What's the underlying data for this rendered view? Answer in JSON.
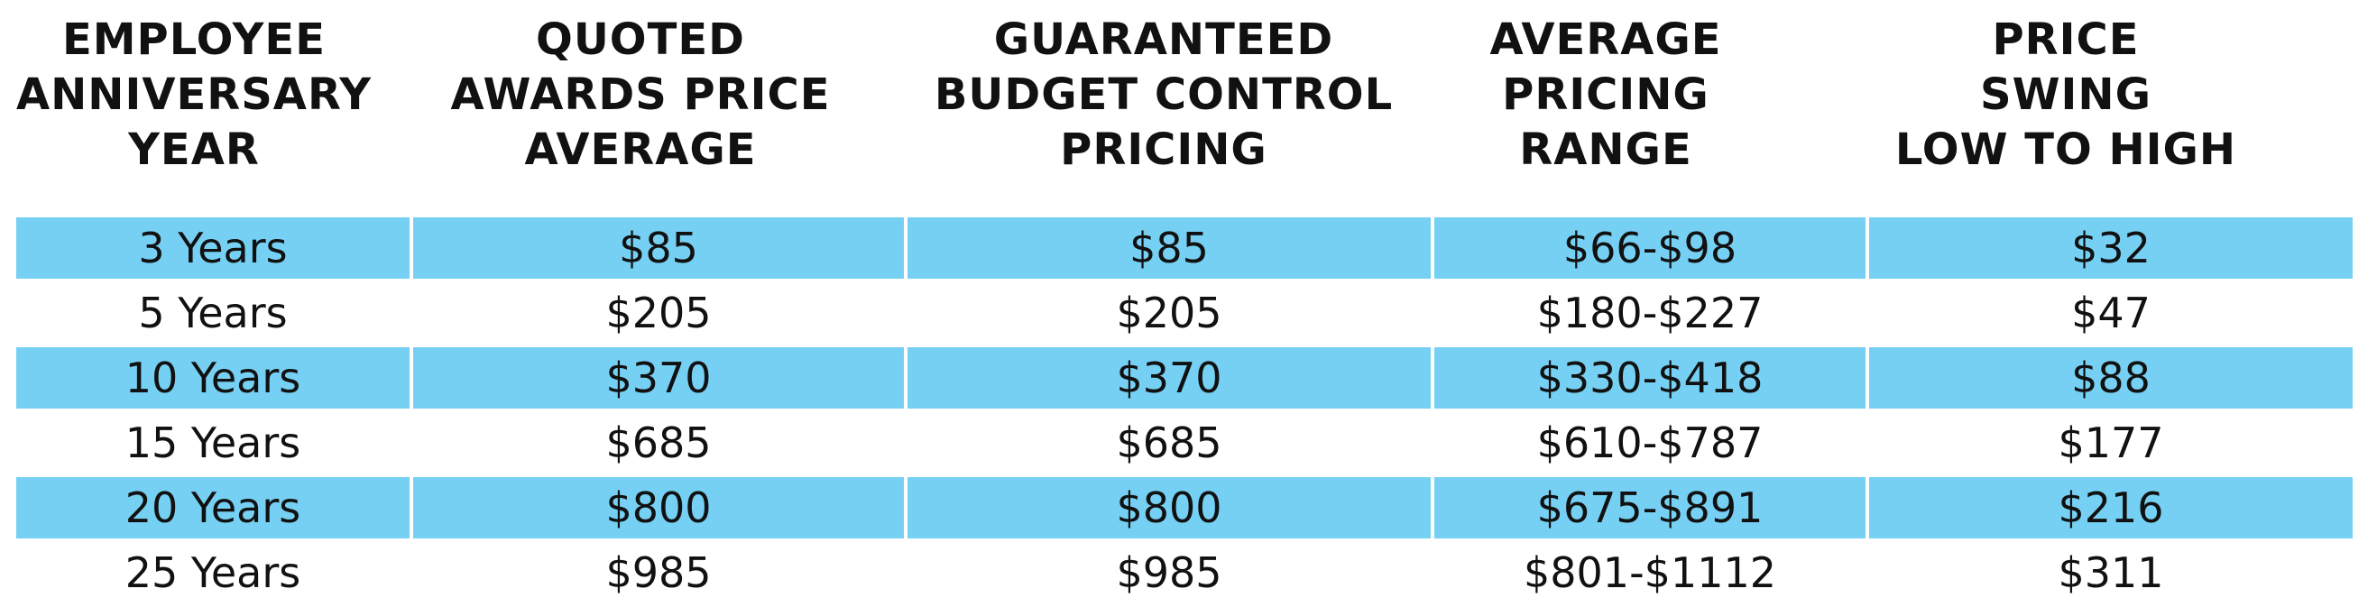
{
  "table": {
    "headers": [
      [
        "EMPLOYEE",
        "ANNIVERSARY",
        "YEAR"
      ],
      [
        "QUOTED",
        "AWARDS PRICE",
        "AVERAGE"
      ],
      [
        "GUARANTEED",
        "BUDGET CONTROL",
        "PRICING"
      ],
      [
        "AVERAGE",
        "PRICING",
        "RANGE"
      ],
      [
        "PRICE",
        "SWING",
        "LOW TO HIGH"
      ]
    ],
    "rows": [
      [
        "3 Years",
        "$85",
        "$85",
        "$66-$98",
        "$32"
      ],
      [
        "5 Years",
        "$205",
        "$205",
        "$180-$227",
        "$47"
      ],
      [
        "10 Years",
        "$370",
        "$370",
        "$330-$418",
        "$88"
      ],
      [
        "15 Years",
        "$685",
        "$685",
        "$610-$787",
        "$177"
      ],
      [
        "20 Years",
        "$800",
        "$800",
        "$675-$891",
        "$216"
      ],
      [
        "25 Years",
        "$985",
        "$985",
        "$801-$1112",
        "$311"
      ]
    ],
    "colors": {
      "row_shade": "#76d0f3",
      "row_plain": "#ffffff",
      "text": "#111111"
    }
  }
}
